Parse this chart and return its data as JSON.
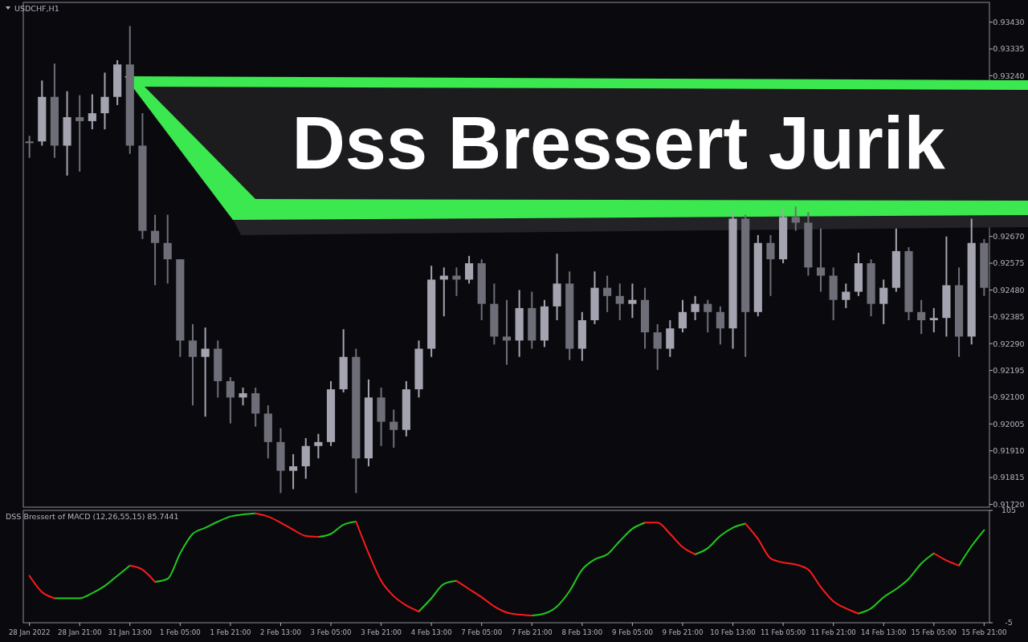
{
  "chart_data": [
    {
      "type": "candlestick",
      "title": "USDCHF,H1",
      "annotations": [
        "Dss Bressert Jurik"
      ],
      "colors": [
        "#6e6e78",
        "#a4a4b0",
        "#6e6e78",
        "#a4a4b0",
        "#6e6e78",
        "#a4a4b0",
        "#a4a4b0",
        "#a4a4b0",
        "#6e6e78",
        "#6e6e78",
        "#6e6e78",
        "#6e6e78",
        "#6e6e78",
        "#6e6e78",
        "#a4a4b0",
        "#6e6e78",
        "#6e6e78",
        "#a4a4b0",
        "#6e6e78",
        "#6e6e78",
        "#6e6e78",
        "#a4a4b0",
        "#a4a4b0",
        "#a4a4b0",
        "#a4a4b0",
        "#a4a4b0",
        "#6e6e78",
        "#a4a4b0",
        "#6e6e78",
        "#6e6e78",
        "#a4a4b0",
        "#a4a4b0",
        "#a4a4b0",
        "#a4a4b0",
        "#6e6e78",
        "#a4a4b0",
        "#6e6e78",
        "#6e6e78",
        "#6e6e78",
        "#a4a4b0",
        "#6e6e78",
        "#a4a4b0",
        "#a4a4b0",
        "#6e6e78",
        "#a4a4b0",
        "#a4a4b0",
        "#6e6e78",
        "#6e6e78",
        "#a4a4b0",
        "#6e6e78",
        "#6e6e78",
        "#a4a4b0",
        "#a4a4b0",
        "#a4a4b0",
        "#6e6e78",
        "#6e6e78",
        "#a4a4b0",
        "#6e6e78",
        "#a4a4b0",
        "#6e6e78",
        "#a4a4b0",
        "#6e6e78",
        "#6e6e78",
        "#6e6e78",
        "#6e6e78",
        "#a4a4b0",
        "#a4a4b0",
        "#6e6e78",
        "#a4a4b0",
        "#a4a4b0",
        "#6e6e78",
        "#6e6e78",
        "#a4a4b0",
        "#a4a4b0",
        "#6e6e78",
        "#a4a4b0",
        "#6e6e78"
      ],
      "tick_labels": "y",
      "grid": false,
      "categories": [
        null,
        null,
        null,
        null,
        null,
        null,
        null,
        null,
        null,
        null,
        null,
        null,
        null,
        null,
        null,
        null,
        null,
        null,
        null,
        null,
        null,
        null,
        null,
        null,
        null,
        null,
        null,
        null,
        null,
        null,
        null,
        null,
        null,
        null,
        null,
        null,
        null,
        null,
        null,
        null,
        null,
        null,
        null,
        null,
        null,
        null,
        null,
        null,
        null,
        null,
        null,
        null,
        null,
        null,
        null,
        null,
        null,
        null,
        null,
        null,
        null,
        null,
        null,
        null,
        null,
        null,
        null,
        null,
        null,
        null,
        null,
        null,
        null,
        null,
        null,
        null,
        null
      ],
      "ylim": [
        0.9171,
        0.935
      ],
      "yticks": [
        {
          "value": 0.9343,
          "label": "0.93430"
        },
        0.93335,
        {
          "value": 0.9324,
          "label": "0.93240"
        },
        {
          "value": 0.9267,
          "label": "0.92670"
        },
        0.92575,
        {
          "value": 0.9248,
          "label": "0.92480"
        },
        0.92385,
        {
          "value": 0.9229,
          "label": "0.92290"
        },
        0.92195,
        {
          "value": 0.921,
          "label": "0.92100"
        },
        0.92005,
        {
          "value": 0.9191,
          "label": "0.91910"
        },
        0.91815,
        {
          "value": 0.9172,
          "label": "0.91720"
        }
      ],
      "ohlc": [
        [
          0.93007,
          0.93027,
          0.92949,
          0.93001
        ],
        [
          0.93007,
          0.93223,
          0.92992,
          0.93165
        ],
        [
          0.93165,
          0.93283,
          0.92949,
          0.92992
        ],
        [
          0.92992,
          0.93185,
          0.92886,
          0.93093
        ],
        [
          0.93093,
          0.93171,
          0.929,
          0.93079
        ],
        [
          0.93079,
          0.93174,
          0.9305,
          0.93107
        ],
        [
          0.93107,
          0.93251,
          0.9305,
          0.93165
        ],
        [
          0.93165,
          0.93295,
          0.93136,
          0.9328
        ],
        [
          0.9328,
          0.93416,
          0.92963,
          0.92992
        ],
        [
          0.92992,
          0.93107,
          0.92661,
          0.9269
        ],
        [
          0.9269,
          0.92747,
          0.92497,
          0.92647
        ],
        [
          0.92647,
          0.92747,
          0.92503,
          0.92589
        ],
        [
          0.92589,
          0.92589,
          0.92243,
          0.92301
        ],
        [
          0.92301,
          0.92359,
          0.92071,
          0.92243
        ],
        [
          0.92243,
          0.92347,
          0.92031,
          0.92272
        ],
        [
          0.92272,
          0.92301,
          0.92099,
          0.92157
        ],
        [
          0.92157,
          0.92171,
          0.92007,
          0.92099
        ],
        [
          0.92099,
          0.92134,
          0.92071,
          0.92114
        ],
        [
          0.92114,
          0.92134,
          0.91996,
          0.92042
        ],
        [
          0.92042,
          0.92071,
          0.91883,
          0.91941
        ],
        [
          0.91941,
          0.9199,
          0.9176,
          0.91839
        ],
        [
          0.91839,
          0.91898,
          0.91774,
          0.91855
        ],
        [
          0.91855,
          0.91955,
          0.91811,
          0.91927
        ],
        [
          0.91927,
          0.9197,
          0.91883,
          0.91941
        ],
        [
          0.91941,
          0.92157,
          0.91927,
          0.92128
        ],
        [
          0.92128,
          0.92341,
          0.92117,
          0.92243
        ],
        [
          0.92243,
          0.92272,
          0.9176,
          0.91883
        ],
        [
          0.91883,
          0.92163,
          0.91855,
          0.92099
        ],
        [
          0.92099,
          0.92134,
          0.91927,
          0.92013
        ],
        [
          0.92013,
          0.92056,
          0.91921,
          0.91984
        ],
        [
          0.91984,
          0.92157,
          0.91961,
          0.92128
        ],
        [
          0.92128,
          0.92301,
          0.92099,
          0.92272
        ],
        [
          0.92272,
          0.92566,
          0.92243,
          0.92517
        ],
        [
          0.92517,
          0.9256,
          0.92387,
          0.92531
        ],
        [
          0.92531,
          0.9256,
          0.92459,
          0.92517
        ],
        [
          0.92517,
          0.92601,
          0.92503,
          0.92575
        ],
        [
          0.92575,
          0.92589,
          0.92373,
          0.92431
        ],
        [
          0.92431,
          0.92503,
          0.92287,
          0.92315
        ],
        [
          0.92315,
          0.92445,
          0.92215,
          0.92301
        ],
        [
          0.92301,
          0.9248,
          0.92243,
          0.92416
        ],
        [
          0.92416,
          0.92474,
          0.92272,
          0.92301
        ],
        [
          0.92301,
          0.92445,
          0.92278,
          0.92422
        ],
        [
          0.92422,
          0.92609,
          0.92373,
          0.92503
        ],
        [
          0.92503,
          0.92546,
          0.92232,
          0.92272
        ],
        [
          0.92272,
          0.92402,
          0.92229,
          0.92373
        ],
        [
          0.92373,
          0.92546,
          0.92359,
          0.92488
        ],
        [
          0.92488,
          0.92531,
          0.92402,
          0.92459
        ],
        [
          0.92459,
          0.92503,
          0.92373,
          0.92431
        ],
        [
          0.92431,
          0.92503,
          0.92381,
          0.92445
        ],
        [
          0.92445,
          0.92488,
          0.92272,
          0.9233
        ],
        [
          0.9233,
          0.92359,
          0.92197,
          0.92272
        ],
        [
          0.92272,
          0.92373,
          0.92243,
          0.92344
        ],
        [
          0.92344,
          0.92445,
          0.9233,
          0.92402
        ],
        [
          0.92402,
          0.92459,
          0.92373,
          0.92431
        ],
        [
          0.92431,
          0.92445,
          0.9233,
          0.92402
        ],
        [
          0.92402,
          0.92422,
          0.92287,
          0.92344
        ],
        [
          0.92344,
          0.92756,
          0.92272,
          0.92733
        ],
        [
          0.92733,
          0.92747,
          0.92243,
          0.92402
        ],
        [
          0.92402,
          0.92675,
          0.92387,
          0.92647
        ],
        [
          0.92647,
          0.92675,
          0.92459,
          0.92589
        ],
        [
          0.92589,
          0.92768,
          0.92575,
          0.92739
        ],
        [
          0.92739,
          0.92776,
          0.9269,
          0.92719
        ],
        [
          0.92719,
          0.92756,
          0.92531,
          0.9256
        ],
        [
          0.9256,
          0.92698,
          0.92474,
          0.92531
        ],
        [
          0.92531,
          0.9256,
          0.92373,
          0.92445
        ],
        [
          0.92445,
          0.92503,
          0.92416,
          0.92474
        ],
        [
          0.92474,
          0.92612,
          0.92459,
          0.92575
        ],
        [
          0.92575,
          0.92589,
          0.92387,
          0.92431
        ],
        [
          0.92431,
          0.92517,
          0.92359,
          0.92488
        ],
        [
          0.92488,
          0.92698,
          0.92474,
          0.92618
        ],
        [
          0.92618,
          0.92632,
          0.92373,
          0.92402
        ],
        [
          0.92402,
          0.92445,
          0.92324,
          0.92373
        ],
        [
          0.92373,
          0.92416,
          0.9233,
          0.92381
        ],
        [
          0.92381,
          0.9267,
          0.92315,
          0.92497
        ],
        [
          0.92497,
          0.9256,
          0.92243,
          0.92315
        ],
        [
          0.92315,
          0.92733,
          0.92287,
          0.92647
        ],
        [
          0.92647,
          0.92661,
          0.92459,
          0.92488
        ]
      ]
    },
    {
      "type": "line",
      "title": "DSS Bressert of MACD (12,26,55,15) 85.7441",
      "grid": false,
      "categories": [
        "28 Jan 2022",
        null,
        null,
        null,
        "28 Jan 21:00",
        null,
        null,
        null,
        "31 Jan 13:00",
        null,
        null,
        null,
        "1 Feb 05:00",
        null,
        null,
        null,
        "1 Feb 21:00",
        null,
        null,
        null,
        "2 Feb 13:00",
        null,
        null,
        null,
        "3 Feb 05:00",
        null,
        null,
        null,
        "3 Feb 21:00",
        null,
        null,
        null,
        "4 Feb 13:00",
        null,
        null,
        null,
        "7 Feb 05:00",
        null,
        null,
        null,
        "7 Feb 21:00",
        null,
        null,
        null,
        "8 Feb 13:00",
        null,
        null,
        null,
        "9 Feb 05:00",
        null,
        null,
        null,
        "9 Feb 21:00",
        null,
        null,
        null,
        "10 Feb 13:00",
        null,
        null,
        null,
        "11 Feb 05:00",
        null,
        null,
        null,
        "11 Feb 21:00",
        null,
        null,
        null,
        "14 Feb 13:00",
        null,
        null,
        null,
        "15 Feb 05:00",
        null,
        null,
        null,
        "15 Feb 21:00"
      ],
      "ylim": [
        -5,
        105
      ],
      "yticks": [
        105,
        -5
      ],
      "series": [
        {
          "color": "#22c81e",
          "values": [
            null,
            null,
            19,
            19,
            19,
            24,
            31,
            41,
            51,
            null,
            35,
            38,
            63,
            82,
            88,
            94,
            99,
            101,
            102,
            null,
            null,
            null,
            null,
            79,
            82,
            91,
            94,
            null,
            null,
            null,
            null,
            6,
            19,
            33,
            36,
            null,
            null,
            null,
            null,
            null,
            2,
            4,
            11,
            26,
            47,
            57,
            62,
            75,
            87,
            93,
            null,
            null,
            null,
            62,
            68,
            80,
            88,
            92,
            null,
            null,
            null,
            null,
            null,
            null,
            null,
            null,
            4,
            9,
            20,
            28,
            38,
            53,
            63,
            null,
            51,
            70,
            85.7441
          ]
        },
        {
          "color": "#ff1a1a",
          "values": [
            41,
            25,
            19,
            null,
            null,
            null,
            null,
            null,
            51,
            47,
            35,
            null,
            null,
            null,
            null,
            null,
            null,
            null,
            102,
            99,
            93,
            86,
            80,
            79,
            null,
            null,
            94,
            63,
            36,
            21,
            12,
            6,
            null,
            null,
            36,
            28,
            20,
            11,
            5,
            3,
            2,
            null,
            null,
            null,
            null,
            null,
            null,
            null,
            null,
            93,
            93,
            82,
            69,
            62,
            null,
            null,
            null,
            92,
            77,
            58,
            54,
            52,
            47,
            30,
            16,
            9,
            4,
            null,
            null,
            null,
            null,
            null,
            63,
            56,
            51,
            null,
            null
          ]
        }
      ]
    }
  ]
}
